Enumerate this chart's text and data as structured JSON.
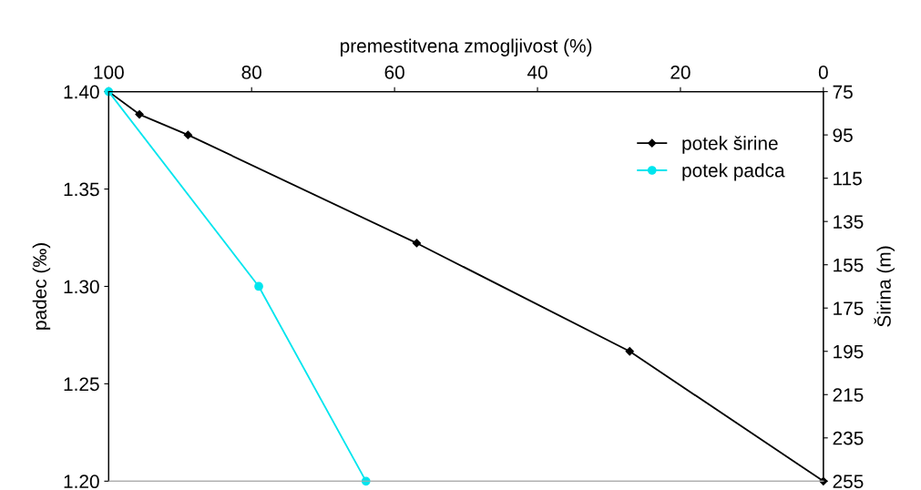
{
  "chart_data": {
    "type": "line",
    "xlabel": "premestitvena zmogljivost (%)",
    "ylabel": "padec (‰)",
    "y2label": "Širina (m)",
    "xlim": [
      100,
      0
    ],
    "xticks": [
      100,
      80,
      60,
      40,
      20,
      0
    ],
    "ylim": [
      1.2,
      1.4
    ],
    "yticks": [
      {
        "value": 1.2,
        "label": "1.20"
      },
      {
        "value": 1.25,
        "label": "1.25"
      },
      {
        "value": 1.3,
        "label": "1.30"
      },
      {
        "value": 1.35,
        "label": "1.35"
      },
      {
        "value": 1.4,
        "label": "1.40"
      }
    ],
    "y2lim": [
      255,
      75
    ],
    "y2ticks": [
      75,
      95,
      115,
      135,
      155,
      175,
      195,
      215,
      235,
      255
    ],
    "grid": false,
    "legend": "top right",
    "series": [
      {
        "name": "potek širine",
        "color": "#000000",
        "marker": "diamond",
        "axis": "y2",
        "x": [
          100,
          95.7,
          88.9,
          56.9,
          27.1,
          0
        ],
        "values": [
          75,
          85.5,
          95,
          145,
          195,
          255
        ]
      },
      {
        "name": "potek padca",
        "color": "#00e5ee",
        "marker": "circle",
        "x": [
          100,
          79,
          64
        ],
        "values": [
          1.4,
          1.3,
          1.2
        ]
      }
    ]
  }
}
